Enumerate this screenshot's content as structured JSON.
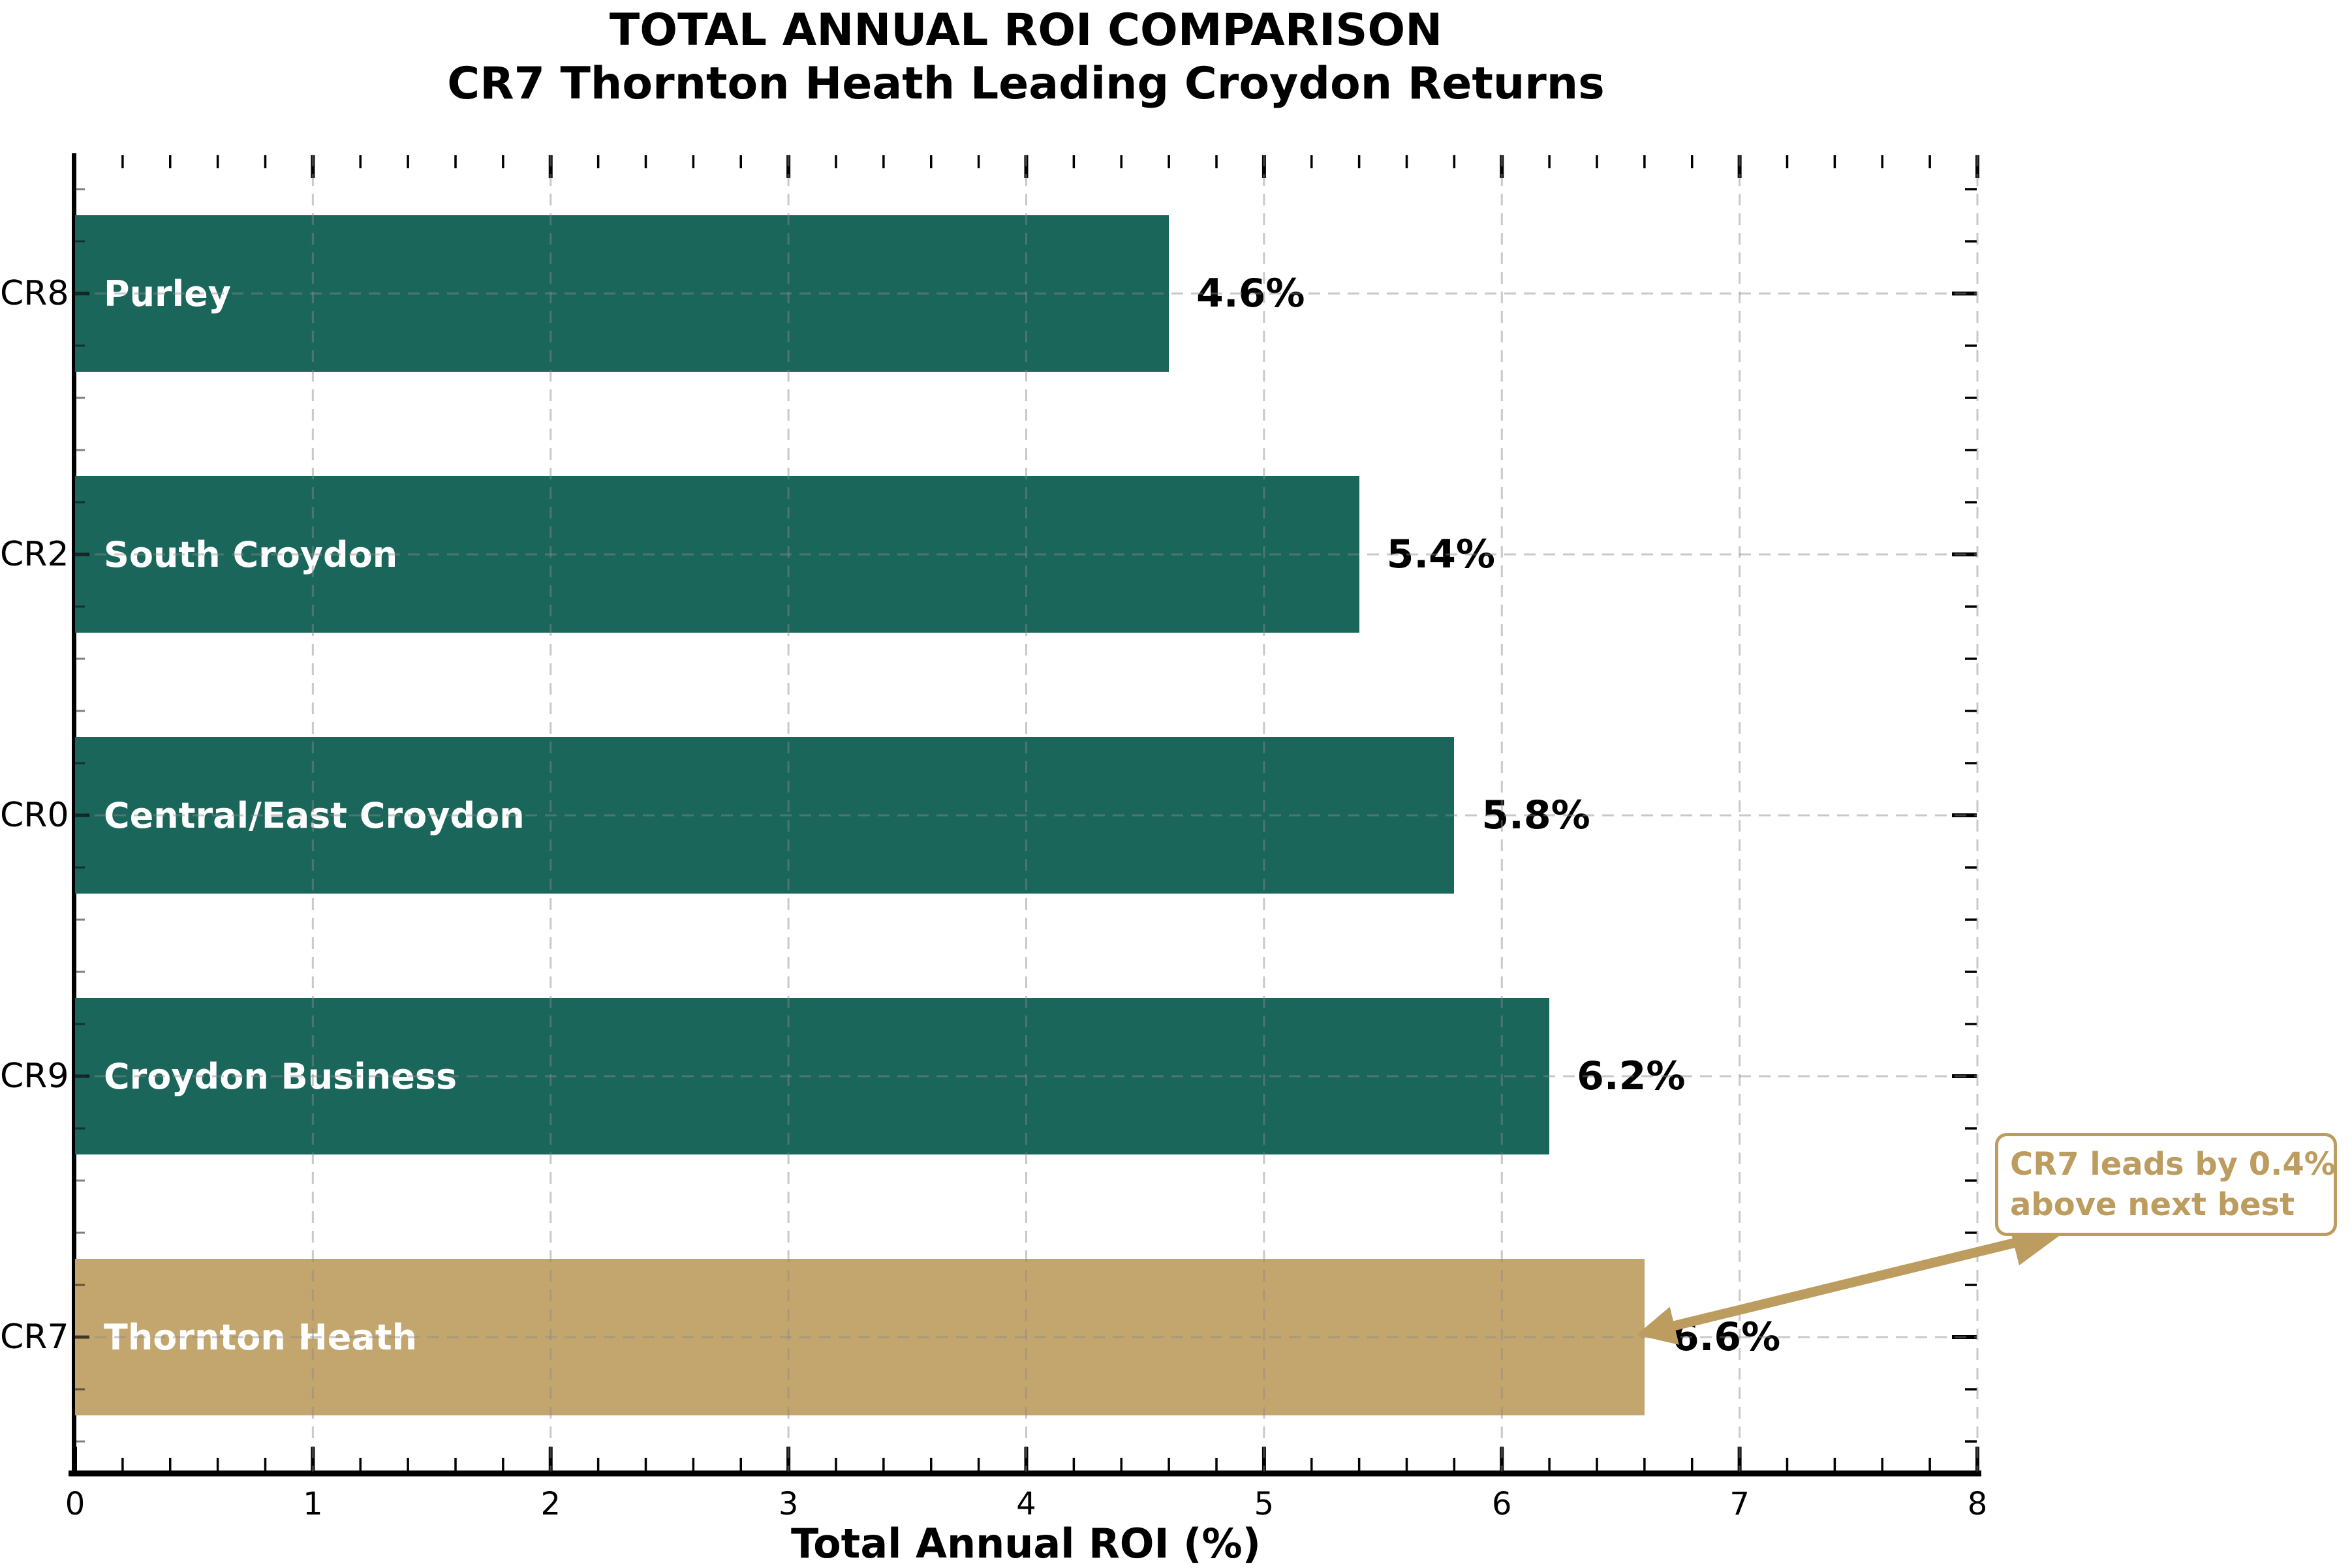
{
  "chart_data": {
    "type": "bar",
    "orientation": "horizontal",
    "title": "TOTAL ANNUAL ROI COMPARISON",
    "subtitle": "CR7 Thornton Heath Leading Croydon Returns",
    "xlabel": "Total Annual ROI (%)",
    "xlim": [
      0,
      8
    ],
    "x_major_ticks": [
      "0",
      "1",
      "2",
      "3",
      "4",
      "5",
      "6",
      "7",
      "8"
    ],
    "x_minor_tick_step": 0.2,
    "grid": {
      "style": "dashed",
      "color": "#8a8a8a"
    },
    "categories": [
      "CR8",
      "CR2",
      "CR0",
      "CR9",
      "CR7"
    ],
    "bar_inner_labels": [
      "Purley",
      "South Croydon",
      "Central/East Croydon",
      "Croydon Business",
      "Thornton Heath"
    ],
    "series": [
      {
        "name": "Total Annual ROI",
        "values": [
          4.6,
          5.4,
          5.8,
          6.2,
          6.6
        ]
      }
    ],
    "value_labels": [
      "4.6%",
      "5.4%",
      "5.8%",
      "6.2%",
      "6.6%"
    ],
    "bar_color": "#1A665A",
    "highlight_color": "#C2A66E",
    "highlight_index": 4,
    "annotation": {
      "line1": "CR7 leads by 0.4%",
      "line2": "above next best",
      "color": "#BC9C5F"
    }
  }
}
